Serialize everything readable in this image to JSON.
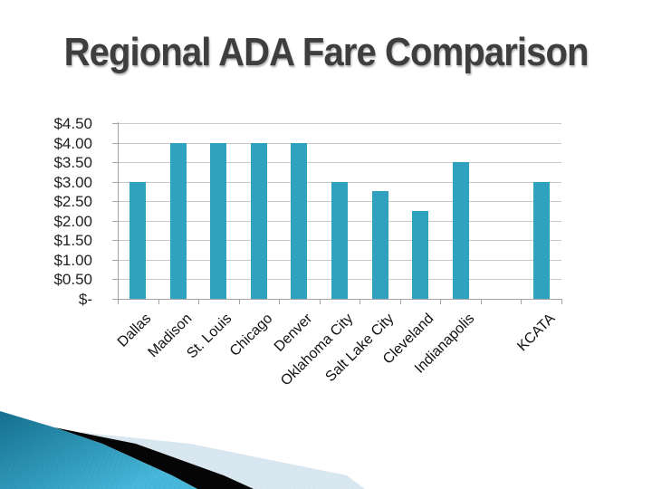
{
  "slide": {
    "title": "Regional ADA Fare Comparison"
  },
  "chart_data": {
    "type": "bar",
    "title": "",
    "xlabel": "",
    "ylabel": "",
    "categories": [
      "Dallas",
      "Madison",
      "St. Louis",
      "Chicago",
      "Denver",
      "Oklahoma City",
      "Salt Lake City",
      "Cleveland",
      "Indianapolis",
      "",
      "KCATA"
    ],
    "values": [
      3.0,
      4.0,
      4.0,
      4.0,
      4.0,
      3.0,
      2.75,
      2.25,
      3.5,
      null,
      3.0
    ],
    "y_tick_labels": [
      "$-",
      "$0.50",
      "$1.00",
      "$1.50",
      "$2.00",
      "$2.50",
      "$3.00",
      "$3.50",
      "$4.00",
      "$4.50"
    ],
    "ylim": [
      0,
      4.5
    ],
    "grid": "horizontal",
    "legend": "none",
    "bar_color": "#2fa2bf",
    "grid_color": "#c9c9c9",
    "axis_color": "#a3a3a3",
    "label_color": "#1f1f1f"
  },
  "decoration": {
    "teal_wedge_dark": "#16708f",
    "teal_wedge_light": "#47b7da",
    "black_wedge": "#050505",
    "pale_wedge": "#d9e7f0"
  }
}
